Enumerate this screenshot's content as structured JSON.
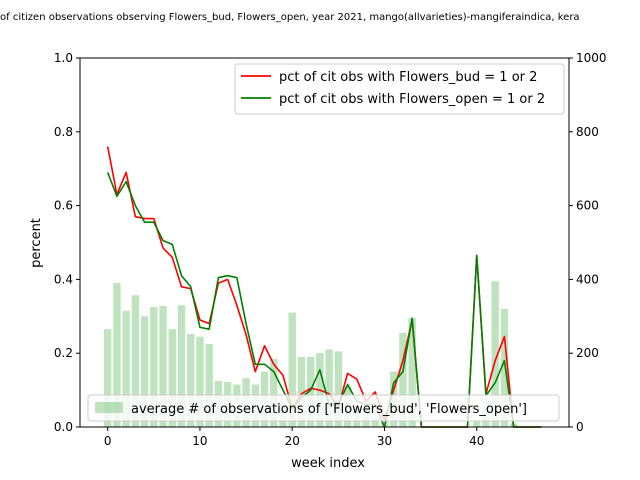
{
  "chart_data": {
    "type": "bar+line",
    "title": "of citizen observations observing Flowers_bud, Flowers_open, year 2021, mango(allvarieties)-mangiferaindica, kera",
    "xlabel": "week index",
    "ylabel": "percent",
    "xlim": [
      -3,
      50
    ],
    "ylim": [
      0,
      1.0
    ],
    "y2lim": [
      0,
      1000
    ],
    "xticks": [
      0,
      10,
      20,
      30,
      40
    ],
    "yticks": [
      0.0,
      0.2,
      0.4,
      0.6,
      0.8,
      1.0
    ],
    "y2ticks": [
      0,
      200,
      400,
      600,
      800,
      1000
    ],
    "grid": false,
    "legend_lines_position": "upper-right",
    "legend_bars_position": "lower-left",
    "x": [
      0,
      1,
      2,
      3,
      4,
      5,
      6,
      7,
      8,
      9,
      10,
      11,
      12,
      13,
      14,
      15,
      16,
      17,
      18,
      19,
      20,
      21,
      22,
      23,
      24,
      25,
      26,
      27,
      28,
      29,
      30,
      31,
      32,
      33,
      34,
      35,
      36,
      37,
      38,
      39,
      40,
      41,
      42,
      43,
      44,
      45,
      46,
      47
    ],
    "bars": {
      "name": "average # of observations of ['Flowers_bud', 'Flowers_open']",
      "color": "#2ca02c",
      "values": [
        265,
        390,
        315,
        357,
        300,
        325,
        328,
        265,
        330,
        252,
        245,
        225,
        125,
        122,
        115,
        132,
        115,
        150,
        185,
        70,
        310,
        190,
        190,
        200,
        210,
        205,
        110,
        55,
        50,
        25,
        45,
        150,
        255,
        295,
        0,
        0,
        0,
        0,
        0,
        0,
        15,
        80,
        395,
        320,
        10,
        0,
        0,
        0
      ]
    },
    "series": [
      {
        "name": "pct of cit obs with Flowers_bud = 1 or 2",
        "color": "#ff0000",
        "values": [
          0.76,
          0.63,
          0.69,
          0.57,
          0.565,
          0.565,
          0.485,
          0.46,
          0.38,
          0.375,
          0.29,
          0.28,
          0.39,
          0.4,
          0.33,
          0.25,
          0.15,
          0.22,
          0.17,
          0.14,
          0.05,
          0.09,
          0.105,
          0.1,
          0.09,
          0.055,
          0.145,
          0.13,
          0.07,
          0.095,
          0.02,
          0.1,
          0.18,
          0.29,
          0.0,
          0.0,
          0.0,
          0.0,
          0.0,
          0.0,
          0.465,
          0.09,
          0.18,
          0.245,
          0.0,
          0.0,
          0.0,
          0.0
        ]
      },
      {
        "name": "pct of cit obs with Flowers_open = 1 or 2",
        "color": "#008000",
        "values": [
          0.69,
          0.625,
          0.665,
          0.6,
          0.555,
          0.555,
          0.505,
          0.495,
          0.41,
          0.38,
          0.27,
          0.265,
          0.405,
          0.41,
          0.405,
          0.28,
          0.17,
          0.17,
          0.15,
          0.1,
          0.05,
          0.08,
          0.1,
          0.155,
          0.06,
          0.06,
          0.115,
          0.07,
          0.06,
          0.06,
          0.0,
          0.12,
          0.15,
          0.295,
          0.0,
          0.0,
          0.0,
          0.0,
          0.0,
          0.0,
          0.465,
          0.085,
          0.12,
          0.18,
          0.0,
          0.0,
          0.0,
          0.0
        ]
      }
    ]
  }
}
